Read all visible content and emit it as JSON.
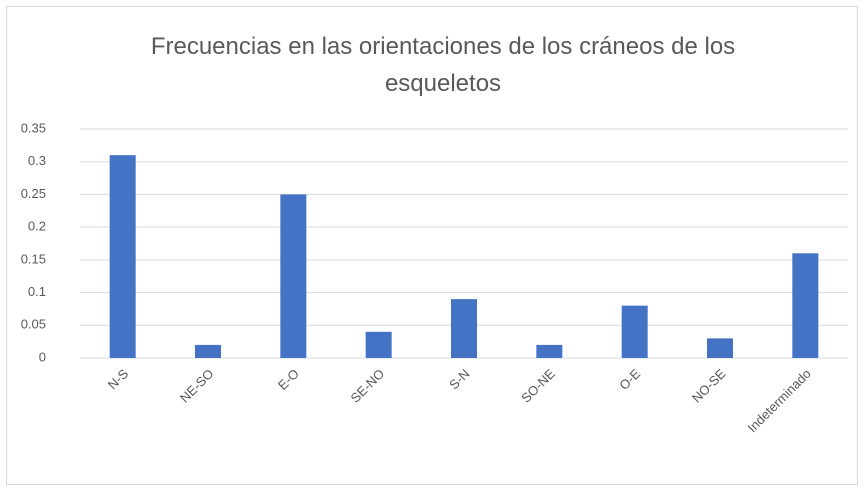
{
  "chart_data": {
    "type": "bar",
    "title": "Frecuencias en las orientaciones de los cráneos de los esqueletos",
    "categories": [
      "N-S",
      "NE-SO",
      "E-O",
      "SE-NO",
      "S-N",
      "SO-NE",
      "O-E",
      "NO-SE",
      "Indeterminado"
    ],
    "values": [
      0.31,
      0.02,
      0.25,
      0.04,
      0.09,
      0.02,
      0.08,
      0.03,
      0.16
    ],
    "color": "#4472c4",
    "ylim": [
      0,
      0.35
    ],
    "yticks": [
      0,
      0.05,
      0.1,
      0.15,
      0.2,
      0.25,
      0.3,
      0.35
    ],
    "grid": true
  }
}
